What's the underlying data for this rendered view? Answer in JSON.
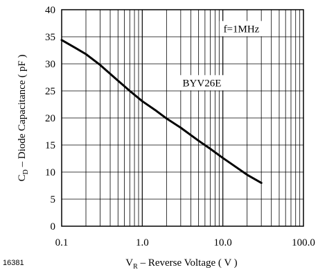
{
  "figure_id": "16381",
  "chart_data": {
    "type": "line",
    "title": "",
    "xlabel": {
      "main": "V",
      "sub": "R",
      "rest": " – Reverse Voltage ( V )"
    },
    "ylabel": {
      "main": "C",
      "sub": "D",
      "rest": " – Diode Capacitance ( pF )"
    },
    "xscale": "log",
    "xlim": [
      0.1,
      100
    ],
    "ylim": [
      0,
      40
    ],
    "x_ticks": [
      {
        "value": 0.1,
        "label": "0.1"
      },
      {
        "value": 1,
        "label": "1.0"
      },
      {
        "value": 10,
        "label": "10.0"
      },
      {
        "value": 100,
        "label": "100.0"
      }
    ],
    "y_ticks": [
      {
        "value": 0,
        "label": "0"
      },
      {
        "value": 5,
        "label": "5"
      },
      {
        "value": 10,
        "label": "10"
      },
      {
        "value": 15,
        "label": "15"
      },
      {
        "value": 20,
        "label": "20"
      },
      {
        "value": 25,
        "label": "25"
      },
      {
        "value": 30,
        "label": "30"
      },
      {
        "value": 35,
        "label": "35"
      },
      {
        "value": 40,
        "label": "40"
      }
    ],
    "grid": true,
    "annotations": [
      {
        "text": "f=1MHz",
        "x": 17,
        "y": 36.5
      },
      {
        "text": "BYV26E",
        "x": 5.5,
        "y": 26.5
      }
    ],
    "series": [
      {
        "x": [
          0.1,
          0.15,
          0.2,
          0.3,
          0.5,
          0.7,
          1,
          1.5,
          2,
          3,
          5,
          7,
          10,
          15,
          20,
          30
        ],
        "y": [
          34.4,
          32.9,
          31.8,
          29.8,
          26.9,
          25,
          23.1,
          21.3,
          19.9,
          18.2,
          15.8,
          14.3,
          12.6,
          10.8,
          9.5,
          8
        ]
      }
    ]
  }
}
